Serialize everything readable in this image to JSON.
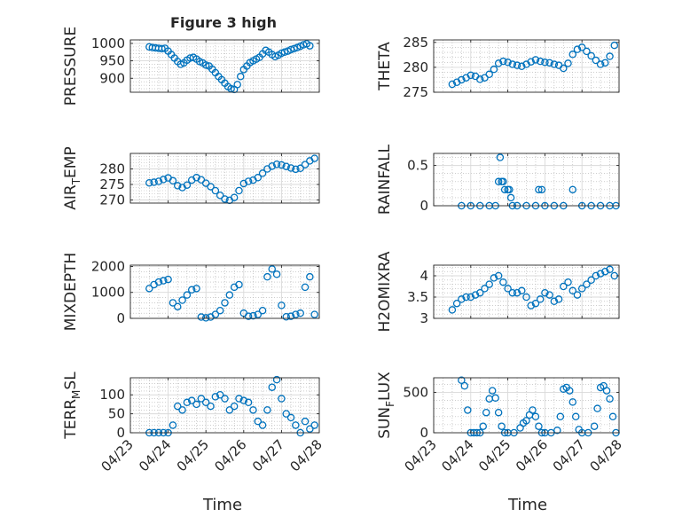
{
  "figure": {
    "title": "Figure 3 high"
  },
  "colors": {
    "marker": "#0072BD",
    "axis": "#262626",
    "grid": "#b0b0b0",
    "background": "#ffffff"
  },
  "x_ticks": [
    "04/23",
    "04/24",
    "04/25",
    "04/26",
    "04/27",
    "04/28"
  ],
  "xlabel": "Time",
  "chart_data": [
    {
      "type": "scatter",
      "ylabel": "PRESSURE",
      "ylabel_sub": "",
      "ylabel_tail": "",
      "xlim": [
        "2023-04-23",
        "2023-04-28"
      ],
      "ylim": [
        860,
        1010
      ],
      "yticks": [
        900,
        950,
        1000
      ],
      "grid": true,
      "minor_grid": true,
      "x": [
        "2023-04-23T12:00",
        "2023-04-23T14:00",
        "2023-04-23T16:00",
        "2023-04-23T18:00",
        "2023-04-23T20:00",
        "2023-04-23T22:00",
        "2023-04-24T00:00",
        "2023-04-24T02:00",
        "2023-04-24T04:00",
        "2023-04-24T06:00",
        "2023-04-24T08:00",
        "2023-04-24T10:00",
        "2023-04-24T12:00",
        "2023-04-24T14:00",
        "2023-04-24T16:00",
        "2023-04-24T18:00",
        "2023-04-24T20:00",
        "2023-04-24T22:00",
        "2023-04-25T00:00",
        "2023-04-25T02:00",
        "2023-04-25T04:00",
        "2023-04-25T06:00",
        "2023-04-25T08:00",
        "2023-04-25T10:00",
        "2023-04-25T12:00",
        "2023-04-25T14:00",
        "2023-04-25T16:00",
        "2023-04-25T18:00",
        "2023-04-25T20:00",
        "2023-04-25T22:00",
        "2023-04-26T00:00",
        "2023-04-26T02:00",
        "2023-04-26T04:00",
        "2023-04-26T06:00",
        "2023-04-26T08:00",
        "2023-04-26T10:00",
        "2023-04-26T12:00",
        "2023-04-26T14:00",
        "2023-04-26T16:00",
        "2023-04-26T18:00",
        "2023-04-26T20:00",
        "2023-04-26T22:00",
        "2023-04-27T00:00",
        "2023-04-27T02:00",
        "2023-04-27T04:00",
        "2023-04-27T06:00",
        "2023-04-27T08:00",
        "2023-04-27T10:00",
        "2023-04-27T12:00",
        "2023-04-27T14:00",
        "2023-04-27T16:00",
        "2023-04-27T18:00"
      ],
      "y": [
        990,
        988,
        987,
        986,
        985,
        986,
        978,
        968,
        958,
        948,
        940,
        944,
        952,
        958,
        960,
        955,
        948,
        944,
        938,
        935,
        926,
        916,
        905,
        896,
        886,
        876,
        870,
        868,
        882,
        905,
        925,
        935,
        945,
        950,
        955,
        960,
        970,
        980,
        975,
        968,
        962,
        966,
        972,
        975,
        978,
        982,
        985,
        988,
        992,
        996,
        999,
        993
      ]
    },
    {
      "type": "scatter",
      "ylabel": "THETA",
      "ylabel_sub": "",
      "ylabel_tail": "",
      "xlim": [
        "2023-04-23",
        "2023-04-28"
      ],
      "ylim": [
        275,
        285.5
      ],
      "yticks": [
        275,
        280,
        285
      ],
      "grid": true,
      "minor_grid": true,
      "x": [
        "2023-04-23T12:00",
        "2023-04-23T15:00",
        "2023-04-23T18:00",
        "2023-04-23T21:00",
        "2023-04-24T00:00",
        "2023-04-24T03:00",
        "2023-04-24T06:00",
        "2023-04-24T09:00",
        "2023-04-24T12:00",
        "2023-04-24T15:00",
        "2023-04-24T18:00",
        "2023-04-24T21:00",
        "2023-04-25T00:00",
        "2023-04-25T03:00",
        "2023-04-25T06:00",
        "2023-04-25T09:00",
        "2023-04-25T12:00",
        "2023-04-25T15:00",
        "2023-04-25T18:00",
        "2023-04-25T21:00",
        "2023-04-26T00:00",
        "2023-04-26T03:00",
        "2023-04-26T06:00",
        "2023-04-26T09:00",
        "2023-04-26T12:00",
        "2023-04-26T15:00",
        "2023-04-26T18:00",
        "2023-04-26T21:00",
        "2023-04-27T00:00",
        "2023-04-27T03:00",
        "2023-04-27T06:00",
        "2023-04-27T09:00",
        "2023-04-27T12:00",
        "2023-04-27T15:00",
        "2023-04-27T18:00",
        "2023-04-27T21:00"
      ],
      "y": [
        276.6,
        277.0,
        277.5,
        277.9,
        278.4,
        278.2,
        277.6,
        277.9,
        278.6,
        279.6,
        280.8,
        281.2,
        281.0,
        280.6,
        280.4,
        280.2,
        280.6,
        281.1,
        281.5,
        281.2,
        281.0,
        280.9,
        280.6,
        280.4,
        279.8,
        280.8,
        282.6,
        283.6,
        284.0,
        283.2,
        282.3,
        281.4,
        280.6,
        280.9,
        282.2,
        284.4
      ]
    },
    {
      "type": "scatter",
      "ylabel": "AIR",
      "ylabel_sub": "T",
      "ylabel_tail": "EMP",
      "xlim": [
        "2023-04-23",
        "2023-04-28"
      ],
      "ylim": [
        269,
        285
      ],
      "yticks": [
        270,
        275,
        280
      ],
      "grid": true,
      "minor_grid": true,
      "x": [
        "2023-04-23T12:00",
        "2023-04-23T15:00",
        "2023-04-23T18:00",
        "2023-04-23T21:00",
        "2023-04-24T00:00",
        "2023-04-24T03:00",
        "2023-04-24T06:00",
        "2023-04-24T09:00",
        "2023-04-24T12:00",
        "2023-04-24T15:00",
        "2023-04-24T18:00",
        "2023-04-24T21:00",
        "2023-04-25T00:00",
        "2023-04-25T03:00",
        "2023-04-25T06:00",
        "2023-04-25T09:00",
        "2023-04-25T12:00",
        "2023-04-25T15:00",
        "2023-04-25T18:00",
        "2023-04-25T21:00",
        "2023-04-26T00:00",
        "2023-04-26T03:00",
        "2023-04-26T06:00",
        "2023-04-26T09:00",
        "2023-04-26T12:00",
        "2023-04-26T15:00",
        "2023-04-26T18:00",
        "2023-04-26T21:00",
        "2023-04-27T00:00",
        "2023-04-27T03:00",
        "2023-04-27T06:00",
        "2023-04-27T09:00",
        "2023-04-27T12:00",
        "2023-04-27T15:00",
        "2023-04-27T18:00",
        "2023-04-27T21:00"
      ],
      "y": [
        275.5,
        275.7,
        276.0,
        276.6,
        277.1,
        276.2,
        274.6,
        274.0,
        274.8,
        276.4,
        277.2,
        276.5,
        275.4,
        274.3,
        273.0,
        271.5,
        270.3,
        269.9,
        270.8,
        273.0,
        275.3,
        276.0,
        276.4,
        277.2,
        278.6,
        280.0,
        280.9,
        281.5,
        281.3,
        280.8,
        280.3,
        279.9,
        280.2,
        281.4,
        282.6,
        283.4
      ]
    },
    {
      "type": "scatter",
      "ylabel": "RAINFALL",
      "ylabel_sub": "",
      "ylabel_tail": "",
      "xlim": [
        "2023-04-23",
        "2023-04-28"
      ],
      "ylim": [
        0,
        0.65
      ],
      "yticks": [
        0,
        0.5
      ],
      "grid": true,
      "minor_grid": true,
      "x": [
        "2023-04-23T18:00",
        "2023-04-24T00:00",
        "2023-04-24T06:00",
        "2023-04-24T12:00",
        "2023-04-24T16:00",
        "2023-04-24T18:00",
        "2023-04-24T19:00",
        "2023-04-24T20:00",
        "2023-04-24T21:00",
        "2023-04-24T22:00",
        "2023-04-25T00:00",
        "2023-04-25T01:00",
        "2023-04-25T02:00",
        "2023-04-25T03:00",
        "2023-04-25T06:00",
        "2023-04-25T12:00",
        "2023-04-25T18:00",
        "2023-04-25T20:00",
        "2023-04-25T22:00",
        "2023-04-26T00:00",
        "2023-04-26T06:00",
        "2023-04-26T12:00",
        "2023-04-26T18:00",
        "2023-04-27T00:00",
        "2023-04-27T06:00",
        "2023-04-27T12:00",
        "2023-04-27T18:00",
        "2023-04-27T22:00"
      ],
      "y": [
        0,
        0,
        0,
        0,
        0,
        0.3,
        0.6,
        0.3,
        0.3,
        0.2,
        0.2,
        0.2,
        0.1,
        0,
        0,
        0,
        0,
        0.2,
        0.2,
        0,
        0,
        0,
        0.2,
        0,
        0,
        0,
        0,
        0
      ]
    },
    {
      "type": "scatter",
      "ylabel": "MIXDEPTH",
      "ylabel_sub": "",
      "ylabel_tail": "",
      "xlim": [
        "2023-04-23",
        "2023-04-28"
      ],
      "ylim": [
        0,
        2050
      ],
      "yticks": [
        0,
        1000,
        2000
      ],
      "grid": true,
      "minor_grid": true,
      "x": [
        "2023-04-23T12:00",
        "2023-04-23T15:00",
        "2023-04-23T18:00",
        "2023-04-23T21:00",
        "2023-04-24T00:00",
        "2023-04-24T03:00",
        "2023-04-24T06:00",
        "2023-04-24T09:00",
        "2023-04-24T12:00",
        "2023-04-24T15:00",
        "2023-04-24T18:00",
        "2023-04-24T21:00",
        "2023-04-25T00:00",
        "2023-04-25T03:00",
        "2023-04-25T06:00",
        "2023-04-25T09:00",
        "2023-04-25T12:00",
        "2023-04-25T15:00",
        "2023-04-25T18:00",
        "2023-04-25T21:00",
        "2023-04-26T00:00",
        "2023-04-26T03:00",
        "2023-04-26T06:00",
        "2023-04-26T09:00",
        "2023-04-26T12:00",
        "2023-04-26T15:00",
        "2023-04-26T18:00",
        "2023-04-26T21:00",
        "2023-04-27T00:00",
        "2023-04-27T03:00",
        "2023-04-27T06:00",
        "2023-04-27T09:00",
        "2023-04-27T12:00",
        "2023-04-27T15:00",
        "2023-04-27T18:00",
        "2023-04-27T21:00"
      ],
      "y": [
        1150,
        1300,
        1400,
        1450,
        1500,
        600,
        450,
        700,
        900,
        1100,
        1150,
        50,
        20,
        50,
        150,
        300,
        600,
        900,
        1200,
        1300,
        200,
        80,
        100,
        150,
        300,
        1600,
        1900,
        1700,
        500,
        60,
        80,
        150,
        200,
        1200,
        1600,
        150
      ]
    },
    {
      "type": "scatter",
      "ylabel": "H2OMIXRA",
      "ylabel_sub": "",
      "ylabel_tail": "",
      "xlim": [
        "2023-04-23",
        "2023-04-28"
      ],
      "ylim": [
        3,
        4.25
      ],
      "yticks": [
        3,
        3.5,
        4
      ],
      "grid": true,
      "minor_grid": true,
      "x": [
        "2023-04-23T12:00",
        "2023-04-23T15:00",
        "2023-04-23T18:00",
        "2023-04-23T21:00",
        "2023-04-24T00:00",
        "2023-04-24T03:00",
        "2023-04-24T06:00",
        "2023-04-24T09:00",
        "2023-04-24T12:00",
        "2023-04-24T15:00",
        "2023-04-24T18:00",
        "2023-04-24T21:00",
        "2023-04-25T00:00",
        "2023-04-25T03:00",
        "2023-04-25T06:00",
        "2023-04-25T09:00",
        "2023-04-25T12:00",
        "2023-04-25T15:00",
        "2023-04-25T18:00",
        "2023-04-25T21:00",
        "2023-04-26T00:00",
        "2023-04-26T03:00",
        "2023-04-26T06:00",
        "2023-04-26T09:00",
        "2023-04-26T12:00",
        "2023-04-26T15:00",
        "2023-04-26T18:00",
        "2023-04-26T21:00",
        "2023-04-27T00:00",
        "2023-04-27T03:00",
        "2023-04-27T06:00",
        "2023-04-27T09:00",
        "2023-04-27T12:00",
        "2023-04-27T15:00",
        "2023-04-27T18:00",
        "2023-04-27T21:00"
      ],
      "y": [
        3.2,
        3.35,
        3.45,
        3.5,
        3.5,
        3.55,
        3.6,
        3.7,
        3.8,
        3.95,
        4.0,
        3.85,
        3.7,
        3.6,
        3.6,
        3.65,
        3.5,
        3.3,
        3.35,
        3.45,
        3.6,
        3.55,
        3.4,
        3.45,
        3.75,
        3.85,
        3.65,
        3.55,
        3.7,
        3.8,
        3.9,
        4.0,
        4.05,
        4.1,
        4.15,
        4.0
      ]
    },
    {
      "type": "scatter",
      "ylabel": "TERR",
      "ylabel_sub": "M",
      "ylabel_tail": "SL",
      "xlim": [
        "2023-04-23",
        "2023-04-28"
      ],
      "ylim": [
        0,
        145
      ],
      "yticks": [
        0,
        50,
        100
      ],
      "grid": true,
      "minor_grid": true,
      "x": [
        "2023-04-23T12:00",
        "2023-04-23T15:00",
        "2023-04-23T18:00",
        "2023-04-23T21:00",
        "2023-04-24T00:00",
        "2023-04-24T03:00",
        "2023-04-24T06:00",
        "2023-04-24T09:00",
        "2023-04-24T12:00",
        "2023-04-24T15:00",
        "2023-04-24T18:00",
        "2023-04-24T21:00",
        "2023-04-25T00:00",
        "2023-04-25T03:00",
        "2023-04-25T06:00",
        "2023-04-25T09:00",
        "2023-04-25T12:00",
        "2023-04-25T15:00",
        "2023-04-25T18:00",
        "2023-04-25T21:00",
        "2023-04-26T00:00",
        "2023-04-26T03:00",
        "2023-04-26T06:00",
        "2023-04-26T09:00",
        "2023-04-26T12:00",
        "2023-04-26T15:00",
        "2023-04-26T18:00",
        "2023-04-26T21:00",
        "2023-04-27T00:00",
        "2023-04-27T03:00",
        "2023-04-27T06:00",
        "2023-04-27T09:00",
        "2023-04-27T12:00",
        "2023-04-27T15:00",
        "2023-04-27T18:00",
        "2023-04-27T21:00"
      ],
      "y": [
        0,
        0,
        0,
        0,
        0,
        20,
        70,
        60,
        80,
        85,
        75,
        90,
        80,
        70,
        95,
        100,
        90,
        60,
        70,
        90,
        85,
        80,
        60,
        30,
        20,
        60,
        120,
        140,
        90,
        50,
        40,
        20,
        0,
        30,
        10,
        20
      ]
    },
    {
      "type": "scatter",
      "ylabel": "SUN",
      "ylabel_sub": "F",
      "ylabel_tail": "LUX",
      "xlim": [
        "2023-04-23",
        "2023-04-28"
      ],
      "ylim": [
        0,
        680
      ],
      "yticks": [
        0,
        500
      ],
      "grid": true,
      "minor_grid": true,
      "x": [
        "2023-04-23T18:00",
        "2023-04-23T20:00",
        "2023-04-23T22:00",
        "2023-04-24T00:00",
        "2023-04-24T02:00",
        "2023-04-24T04:00",
        "2023-04-24T06:00",
        "2023-04-24T08:00",
        "2023-04-24T10:00",
        "2023-04-24T12:00",
        "2023-04-24T14:00",
        "2023-04-24T16:00",
        "2023-04-24T18:00",
        "2023-04-24T20:00",
        "2023-04-24T22:00",
        "2023-04-25T00:00",
        "2023-04-25T04:00",
        "2023-04-25T08:00",
        "2023-04-25T10:00",
        "2023-04-25T12:00",
        "2023-04-25T14:00",
        "2023-04-25T16:00",
        "2023-04-25T18:00",
        "2023-04-25T20:00",
        "2023-04-25T22:00",
        "2023-04-26T00:00",
        "2023-04-26T04:00",
        "2023-04-26T08:00",
        "2023-04-26T10:00",
        "2023-04-26T12:00",
        "2023-04-26T14:00",
        "2023-04-26T16:00",
        "2023-04-26T18:00",
        "2023-04-26T20:00",
        "2023-04-26T22:00",
        "2023-04-27T00:00",
        "2023-04-27T04:00",
        "2023-04-27T08:00",
        "2023-04-27T10:00",
        "2023-04-27T12:00",
        "2023-04-27T14:00",
        "2023-04-27T16:00",
        "2023-04-27T18:00",
        "2023-04-27T20:00",
        "2023-04-27T22:00"
      ],
      "y": [
        650,
        580,
        280,
        0,
        0,
        0,
        0,
        80,
        250,
        420,
        520,
        430,
        250,
        80,
        0,
        0,
        0,
        60,
        120,
        150,
        220,
        280,
        200,
        80,
        0,
        0,
        0,
        30,
        200,
        540,
        560,
        520,
        380,
        200,
        40,
        0,
        0,
        80,
        300,
        560,
        580,
        520,
        420,
        200,
        0
      ]
    }
  ]
}
